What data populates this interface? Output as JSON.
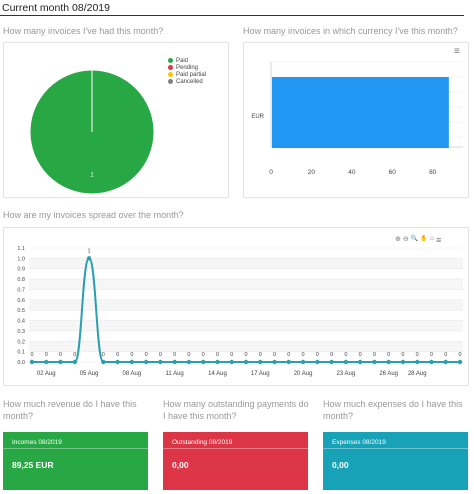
{
  "page": {
    "title": "Current month 08/2019"
  },
  "questions": {
    "invoices_count": "How many invoices I've had this month?",
    "invoices_currency": "How many invoices in which currency I've this month?",
    "invoices_spread": "How are my invoices spread over the month?",
    "revenue": "How much revenue do I have this month?",
    "outstanding": "How many outstanding payments do I have this month?",
    "expenses": "How much expenses do I have this month?"
  },
  "pie": {
    "legend": [
      {
        "label": "Paid",
        "color": "#28a745"
      },
      {
        "label": "Pending",
        "color": "#dc3545"
      },
      {
        "label": "Paid partial",
        "color": "#ffc107"
      },
      {
        "label": "Cancelled",
        "color": "#808080"
      }
    ],
    "slice_label": "1"
  },
  "chart_data": [
    {
      "type": "pie",
      "categories": [
        "Paid",
        "Pending",
        "Paid partial",
        "Cancelled"
      ],
      "values": [
        1,
        0,
        0,
        0
      ],
      "colors": [
        "#28a745",
        "#dc3545",
        "#ffc107",
        "#808080"
      ],
      "data_labels": [
        "1"
      ],
      "legend": "top-right"
    },
    {
      "type": "bar",
      "orientation": "horizontal",
      "categories": [
        "EUR"
      ],
      "values": [
        88
      ],
      "xticks": [
        "0",
        "20",
        "40",
        "60",
        "80"
      ],
      "xlim": [
        0,
        95
      ],
      "color": "#2196f3",
      "grid": true
    },
    {
      "type": "line",
      "x": [
        "01 Aug",
        "02 Aug",
        "03 Aug",
        "04 Aug",
        "05 Aug",
        "06 Aug",
        "07 Aug",
        "08 Aug",
        "09 Aug",
        "10 Aug",
        "11 Aug",
        "12 Aug",
        "13 Aug",
        "14 Aug",
        "15 Aug",
        "16 Aug",
        "17 Aug",
        "18 Aug",
        "19 Aug",
        "20 Aug",
        "21 Aug",
        "22 Aug",
        "23 Aug",
        "24 Aug",
        "25 Aug",
        "26 Aug",
        "27 Aug",
        "28 Aug",
        "29 Aug",
        "30 Aug",
        "31 Aug"
      ],
      "values": [
        0,
        0,
        0,
        0,
        1,
        0,
        0,
        0,
        0,
        0,
        0,
        0,
        0,
        0,
        0,
        0,
        0,
        0,
        0,
        0,
        0,
        0,
        0,
        0,
        0,
        0,
        0,
        0,
        0,
        0,
        0
      ],
      "data_labels": [
        "0",
        "0",
        "0",
        "0",
        "1",
        "0",
        "0",
        "0",
        "0",
        "0",
        "0",
        "0",
        "0",
        "0",
        "0",
        "0",
        "0",
        "0",
        "0",
        "0",
        "0",
        "0",
        "0",
        "0",
        "0",
        "0",
        "0",
        "0",
        "0",
        "0",
        "0"
      ],
      "xticks": [
        "02 Aug",
        "05 Aug",
        "08 Aug",
        "11 Aug",
        "14 Aug",
        "17 Aug",
        "20 Aug",
        "23 Aug",
        "26 Aug",
        "28 Aug"
      ],
      "yticks": [
        "0.0",
        "0.1",
        "0.2",
        "0.3",
        "0.4",
        "0.5",
        "0.6",
        "0.7",
        "0.8",
        "0.9",
        "1.0",
        "1.1"
      ],
      "ylim": [
        0,
        1.1
      ],
      "color": "#2a9fb0",
      "grid": true
    }
  ],
  "tiles": {
    "incomes": {
      "label": "Incomes 08/2019",
      "value": "89,25 EUR",
      "color": "#28a745"
    },
    "outstanding": {
      "label": "Outstanding 08/2019",
      "value": "0,00",
      "color": "#dc3545"
    },
    "expenses": {
      "label": "Expenses 08/2019",
      "value": "0,00",
      "color": "#17a2b8"
    }
  },
  "icons": {
    "zoom_in": "⊕",
    "zoom_out": "⊖",
    "zoom": "🔍",
    "pan": "✋",
    "home": "⌂",
    "menu": "≡"
  }
}
